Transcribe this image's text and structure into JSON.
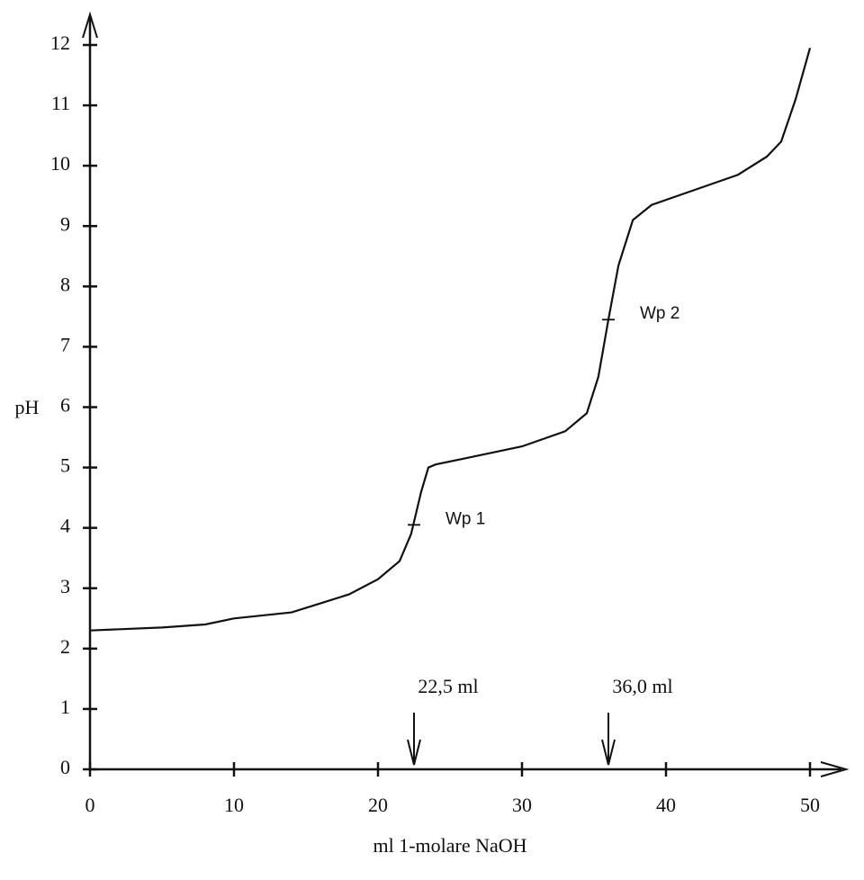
{
  "chart_data": {
    "type": "line",
    "x_label": "ml 1-molare NaOH",
    "y_label": "pH",
    "x": [
      0,
      5,
      8,
      10,
      14,
      16,
      18,
      20,
      21.5,
      22.3,
      22.5,
      23,
      23.5,
      24,
      26,
      30,
      33,
      34.5,
      35.3,
      36,
      36.7,
      37.7,
      39,
      42,
      45,
      47,
      48,
      49,
      50
    ],
    "series": [
      {
        "color": "#111111",
        "values": [
          2.3,
          2.35,
          2.4,
          2.5,
          2.6,
          2.75,
          2.9,
          3.15,
          3.45,
          3.9,
          4.1,
          4.6,
          5.0,
          5.05,
          5.15,
          5.35,
          5.6,
          5.9,
          6.5,
          7.45,
          8.35,
          9.1,
          9.35,
          9.6,
          9.85,
          10.15,
          10.4,
          11.1,
          11.95
        ]
      }
    ],
    "xlim": [
      0,
      50
    ],
    "xticks": [
      0,
      10,
      20,
      30,
      40,
      50
    ],
    "ylim": [
      0,
      12
    ],
    "yticks": [
      0,
      1,
      2,
      3,
      4,
      5,
      6,
      7,
      8,
      9,
      10,
      11,
      12
    ],
    "points": [
      {
        "text": "Wp 1",
        "x": 22.5,
        "y": 4.05
      },
      {
        "text": "Wp 2",
        "x": 36,
        "y": 7.45
      }
    ],
    "arrows": [
      {
        "text": "22,5 ml",
        "x": 22.5
      },
      {
        "text": "36,0 ml",
        "x": 36
      }
    ]
  }
}
